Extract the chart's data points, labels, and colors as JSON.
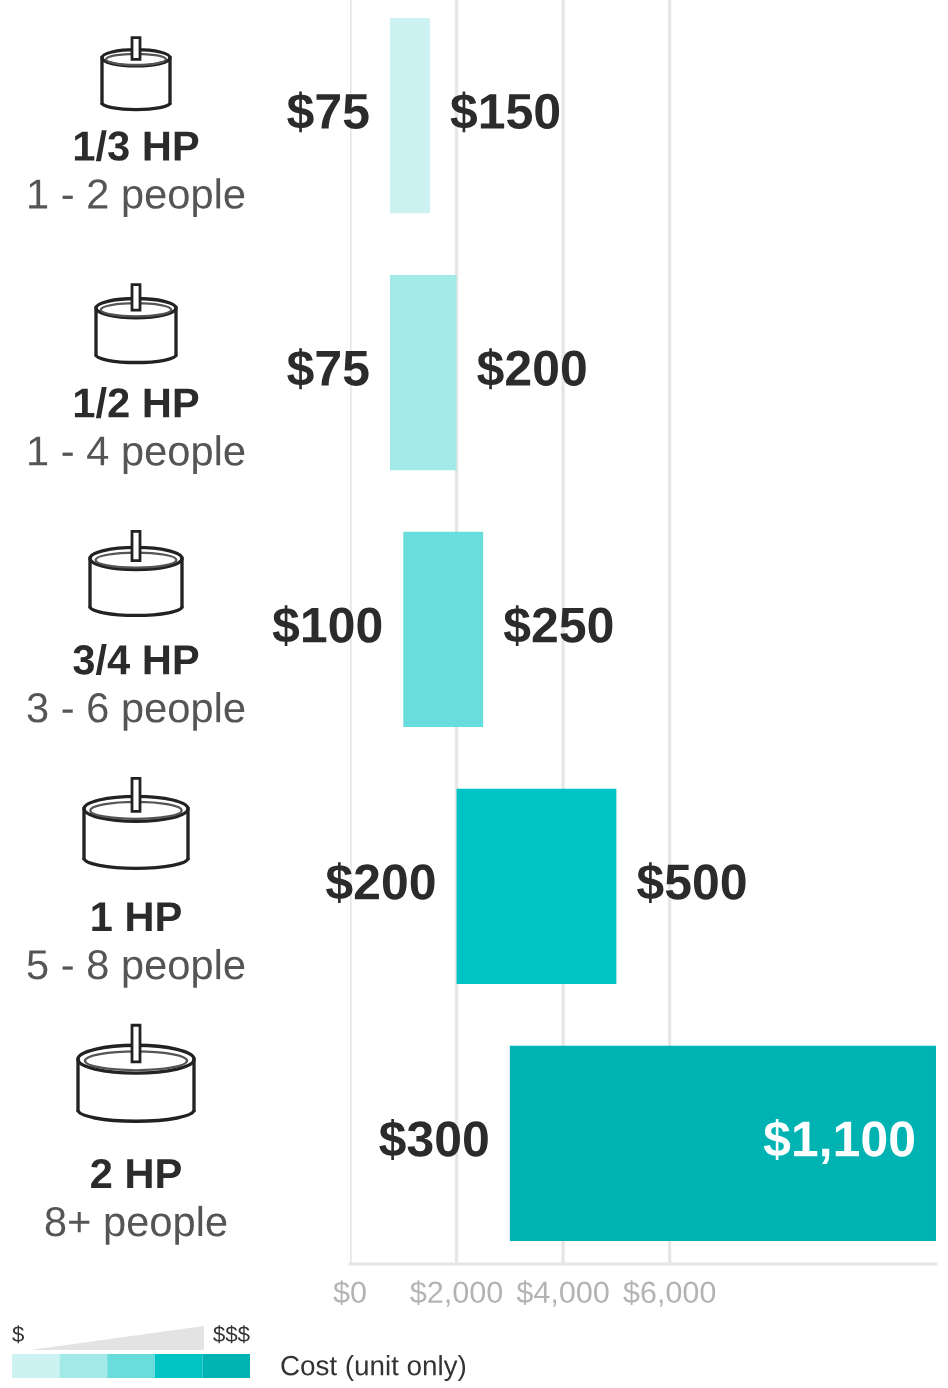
{
  "chart_data": {
    "type": "bar",
    "orientation": "horizontal",
    "categories": [
      "1/3 HP\n1 - 2 people",
      "1/2 HP\n1 - 4 people",
      "3/4 HP\n3 - 6 people",
      "1 HP\n5 - 8 people",
      "2 HP\n8+ people"
    ],
    "base": [
      750,
      750,
      1000,
      2000,
      3000
    ],
    "values": [
      750,
      1250,
      1500,
      3000,
      8000
    ],
    "colors": [
      "#ccf2f1",
      "#a2e9e7",
      "#69dddb",
      "#00c4c4",
      "#00b3b3"
    ],
    "xlim": [
      0,
      11000
    ],
    "xticks": [
      {
        "value": 0,
        "label": "$0"
      },
      {
        "value": 2000,
        "label": "$2,000"
      },
      {
        "value": 4000,
        "label": "$4,000"
      },
      {
        "value": 6000,
        "label": "$6,000"
      }
    ],
    "grid": "x",
    "annotations": [
      {
        "text": "$75",
        "x": 750,
        "y": "1/3 HP\n1 - 2 people"
      },
      {
        "text": "$150",
        "x": 1500,
        "y": "1/3 HP\n1 - 2 people"
      },
      {
        "text": "$75",
        "x": 750,
        "y": "1/2 HP\n1 - 4 people"
      },
      {
        "text": "$200",
        "x": 2000,
        "y": "1/2 HP\n1 - 4 people"
      },
      {
        "text": "$100",
        "x": 1000,
        "y": "3/4 HP\n3 - 6 people"
      },
      {
        "text": "$250",
        "x": 2500,
        "y": "3/4 HP\n3 - 6 people"
      },
      {
        "text": "$200",
        "x": 2000,
        "y": "1 HP\n5 - 8 people"
      },
      {
        "text": "$500",
        "x": 5000,
        "y": "1 HP\n5 - 8 people"
      },
      {
        "text": "$300",
        "x": 3000,
        "y": "2 HP\n8+ people"
      },
      {
        "text": "$1,100",
        "x": 11000,
        "y": "2 HP\n8+ people"
      },
      "$",
      "$$$",
      "Cost (unit only)"
    ]
  }
}
